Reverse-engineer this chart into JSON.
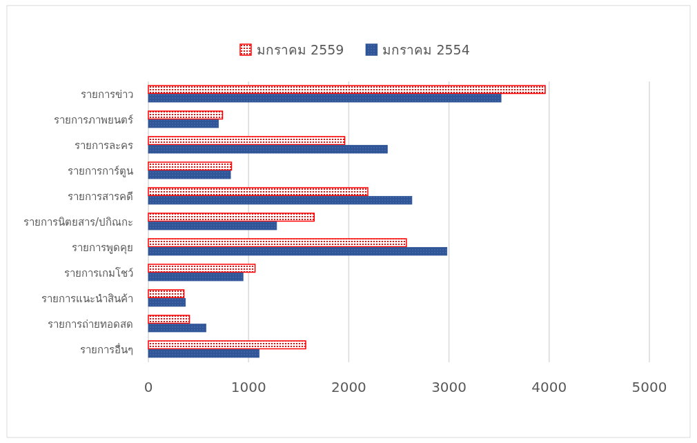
{
  "chart_data": {
    "type": "bar",
    "orientation": "horizontal",
    "categories": [
      "รายการข่าว",
      "รายการภาพยนตร์",
      "รายการละคร",
      "รายการการ์ตูน",
      "รายการสารคดี",
      "รายการนิตยสาร/ปกิณกะ",
      "รายการพูดคุย",
      "รายการเกมโชว์",
      "รายการแนะนำสินค้า",
      "รายการถ่ายทอดสด",
      "รายการอื่นๆ"
    ],
    "series": [
      {
        "name": "มกราคม 2559",
        "color": "#ff0000",
        "values": [
          3960,
          740,
          1960,
          830,
          2190,
          1655,
          2575,
          1065,
          355,
          410,
          1570
        ]
      },
      {
        "name": "มกราคม 2554",
        "color": "#2f5597",
        "values": [
          3520,
          700,
          2385,
          820,
          2630,
          1280,
          2980,
          945,
          370,
          575,
          1105
        ]
      }
    ],
    "xlim": [
      0,
      5000
    ],
    "xticks": [
      0,
      1000,
      2000,
      3000,
      4000,
      5000
    ],
    "grid": "x",
    "legend": "top"
  }
}
